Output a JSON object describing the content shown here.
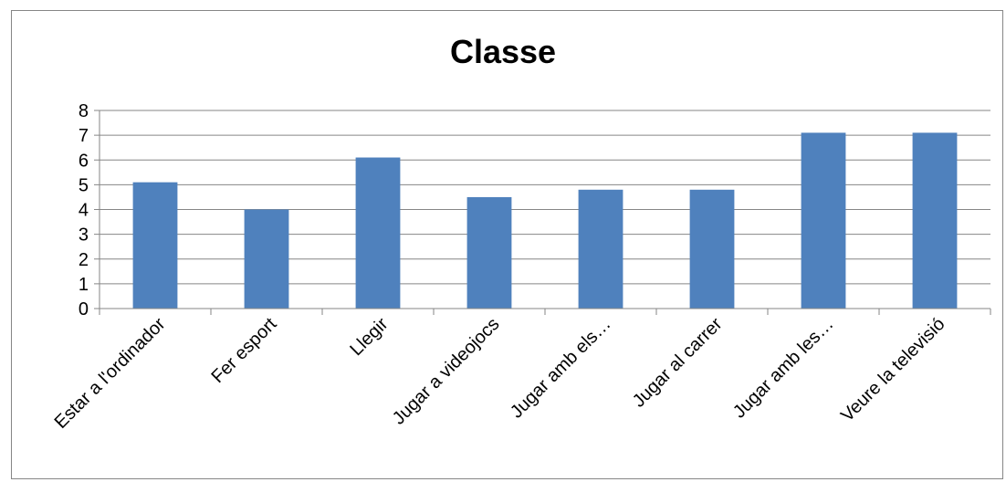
{
  "chart_data": {
    "type": "bar",
    "title": "Classe",
    "categories": [
      "Estar a l'ordinador",
      "Fer esport",
      "Llegir",
      "Jugar a videojocs",
      "Jugar amb els…",
      "Jugar al carrer",
      "Jugar amb les…",
      "Veure la televisió"
    ],
    "values": [
      5.1,
      4.0,
      6.1,
      4.5,
      4.8,
      4.8,
      7.1,
      7.1
    ],
    "ylim": [
      0,
      8
    ],
    "yticks": [
      0,
      1,
      2,
      3,
      4,
      5,
      6,
      7,
      8
    ],
    "grid": true,
    "legend": "none",
    "bar_color": "#4F81BD"
  }
}
